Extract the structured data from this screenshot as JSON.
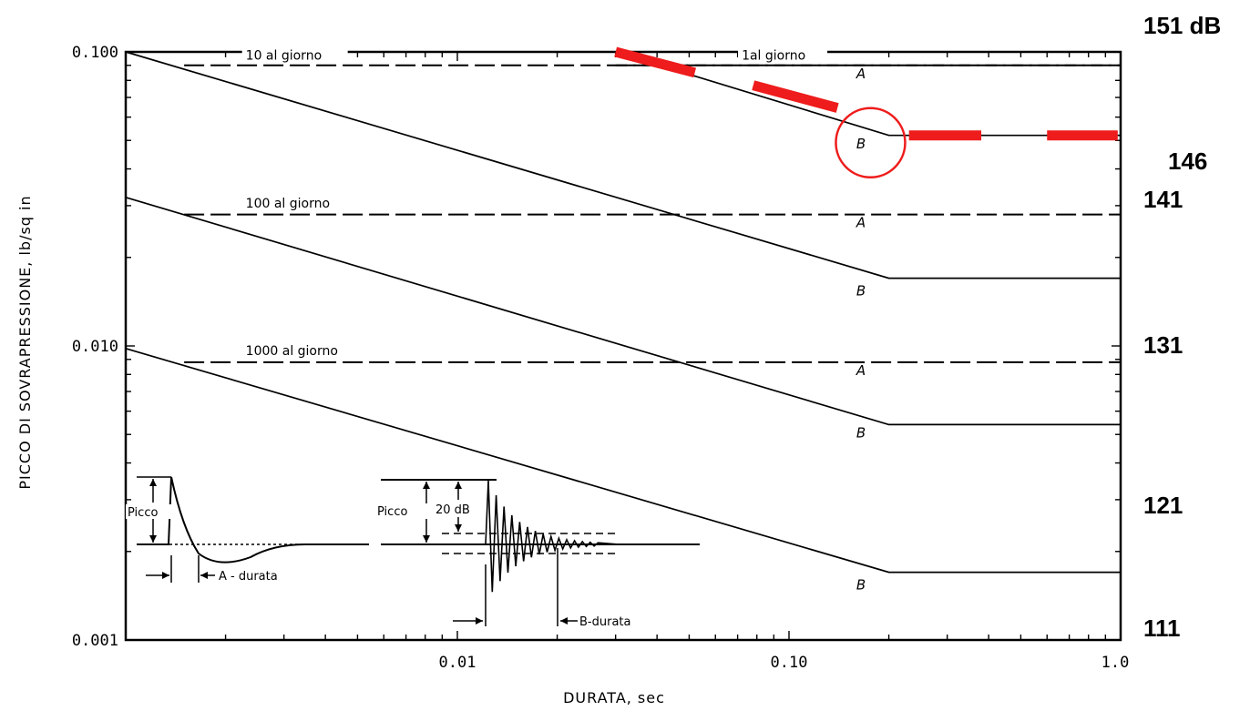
{
  "chart_data": {
    "type": "line",
    "xlabel": "DURATA, sec",
    "ylabel": "PICCO DI SOVRAPRESSIONE, lb/sq in",
    "x_scale": "log",
    "y_scale": "log",
    "xlim": [
      0.001,
      1.0
    ],
    "ylim": [
      0.001,
      0.1
    ],
    "x_ticks": [
      {
        "value": 0.01,
        "label": "0.01"
      },
      {
        "value": 0.1,
        "label": "0.10"
      },
      {
        "value": 1.0,
        "label": "1.0"
      }
    ],
    "y_ticks": [
      {
        "value": 0.1,
        "label": "0.100"
      },
      {
        "value": 0.01,
        "label": "0.010"
      },
      {
        "value": 0.001,
        "label": "0.001"
      }
    ],
    "right_axis_labels": [
      {
        "value": 0.2,
        "label": "151 dB"
      },
      {
        "value": 0.05,
        "label": "146"
      },
      {
        "value": 0.028,
        "label": "141"
      },
      {
        "value": 0.01,
        "label": "131"
      },
      {
        "value": 0.0029,
        "label": "121"
      },
      {
        "value": 0.0011,
        "label": "111"
      }
    ],
    "series": [
      {
        "label": "1al giorno",
        "curve": "A",
        "kind": "dashed",
        "x": [
          0.03,
          1.0
        ],
        "y": [
          0.09,
          0.09
        ]
      },
      {
        "label": "1al giorno",
        "curve": "B",
        "kind": "solid",
        "x": [
          0.03,
          0.2,
          1.0
        ],
        "y": [
          0.1,
          0.052,
          0.052
        ]
      },
      {
        "label": "10 al giorno",
        "curve": "A",
        "kind": "dashed",
        "x": [
          0.0015,
          1.0
        ],
        "y": [
          0.09,
          0.09
        ]
      },
      {
        "label": "10 al giorno",
        "curve": "B",
        "kind": "solid",
        "x": [
          0.001,
          0.2,
          1.0
        ],
        "y": [
          0.1,
          0.017,
          0.017
        ]
      },
      {
        "label": "100 al giorno",
        "curve": "A",
        "kind": "dashed",
        "x": [
          0.0015,
          1.0
        ],
        "y": [
          0.028,
          0.028
        ]
      },
      {
        "label": "100 al giorno",
        "curve": "B",
        "kind": "solid",
        "x": [
          0.001,
          0.2,
          1.0
        ],
        "y": [
          0.032,
          0.0054,
          0.0054
        ]
      },
      {
        "label": "1000 al giorno",
        "curve": "A",
        "kind": "dashed",
        "x": [
          0.0015,
          1.0
        ],
        "y": [
          0.0088,
          0.0088
        ]
      },
      {
        "label": "1000 al giorno",
        "curve": "B",
        "kind": "solid",
        "x": [
          0.001,
          0.2,
          1.0
        ],
        "y": [
          0.0098,
          0.0017,
          0.0017
        ]
      }
    ],
    "curve_labels": [
      {
        "text": "10 al giorno",
        "x": 0.0023,
        "y": 0.094
      },
      {
        "text": "1al giorno",
        "x": 0.072,
        "y": 0.094
      },
      {
        "text": "100 al giorno",
        "x": 0.0023,
        "y": 0.0295
      },
      {
        "text": "1000 al giorno",
        "x": 0.0023,
        "y": 0.0093
      }
    ],
    "ab_labels": [
      {
        "text": "A",
        "x": 0.17,
        "y": 0.085
      },
      {
        "text": "B",
        "x": 0.17,
        "y": 0.049
      },
      {
        "text": "A",
        "x": 0.17,
        "y": 0.0265
      },
      {
        "text": "B",
        "x": 0.17,
        "y": 0.0155
      },
      {
        "text": "A",
        "x": 0.17,
        "y": 0.0083
      },
      {
        "text": "B",
        "x": 0.17,
        "y": 0.0051
      },
      {
        "text": "B",
        "x": 0.17,
        "y": 0.00155
      }
    ],
    "highlight": {
      "color": "#ee1c1c",
      "dash_segments": [
        {
          "x": [
            0.03,
            0.052
          ],
          "y": [
            0.1,
            0.085
          ]
        },
        {
          "x": [
            0.078,
            0.14
          ],
          "y": [
            0.077,
            0.0645
          ]
        },
        {
          "x": [
            0.23,
            0.38
          ],
          "y": [
            0.052,
            0.052
          ]
        },
        {
          "x": [
            0.6,
            0.98
          ],
          "y": [
            0.052,
            0.052
          ]
        }
      ],
      "circle": {
        "x": 0.19,
        "y": 0.052
      }
    },
    "insets": {
      "inset_a": {
        "peak_label": "Picco",
        "duration_label": "A - durata"
      },
      "inset_b": {
        "peak_label": "Picco",
        "db_label": "20 dB",
        "duration_label": "B-durata"
      }
    }
  }
}
